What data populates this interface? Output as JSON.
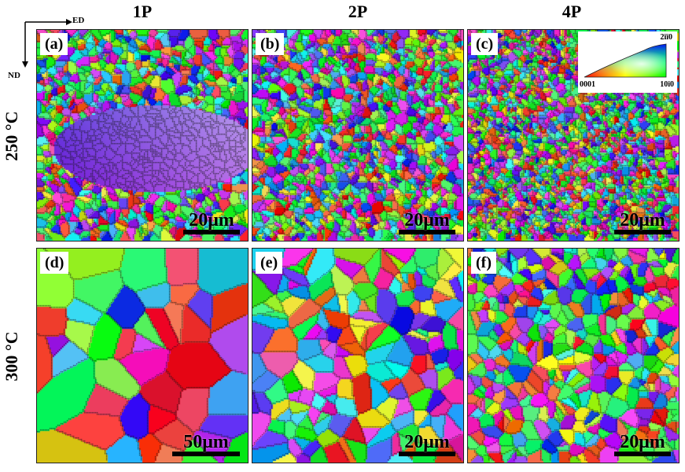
{
  "columns": [
    "1P",
    "2P",
    "4P"
  ],
  "rows": [
    "250 °C",
    "300 °C"
  ],
  "axes": {
    "horizontal": "ED",
    "vertical": "ND"
  },
  "ipf_key": {
    "top": "2īī0",
    "left": "0001",
    "right": "10ī0"
  },
  "panels": [
    {
      "label": "(a)",
      "scale": "20μm"
    },
    {
      "label": "(b)",
      "scale": "20μm"
    },
    {
      "label": "(c)",
      "scale": "20μm"
    },
    {
      "label": "(d)",
      "scale": "50μm"
    },
    {
      "label": "(e)",
      "scale": "20μm"
    },
    {
      "label": "(f)",
      "scale": "20μm"
    }
  ]
}
